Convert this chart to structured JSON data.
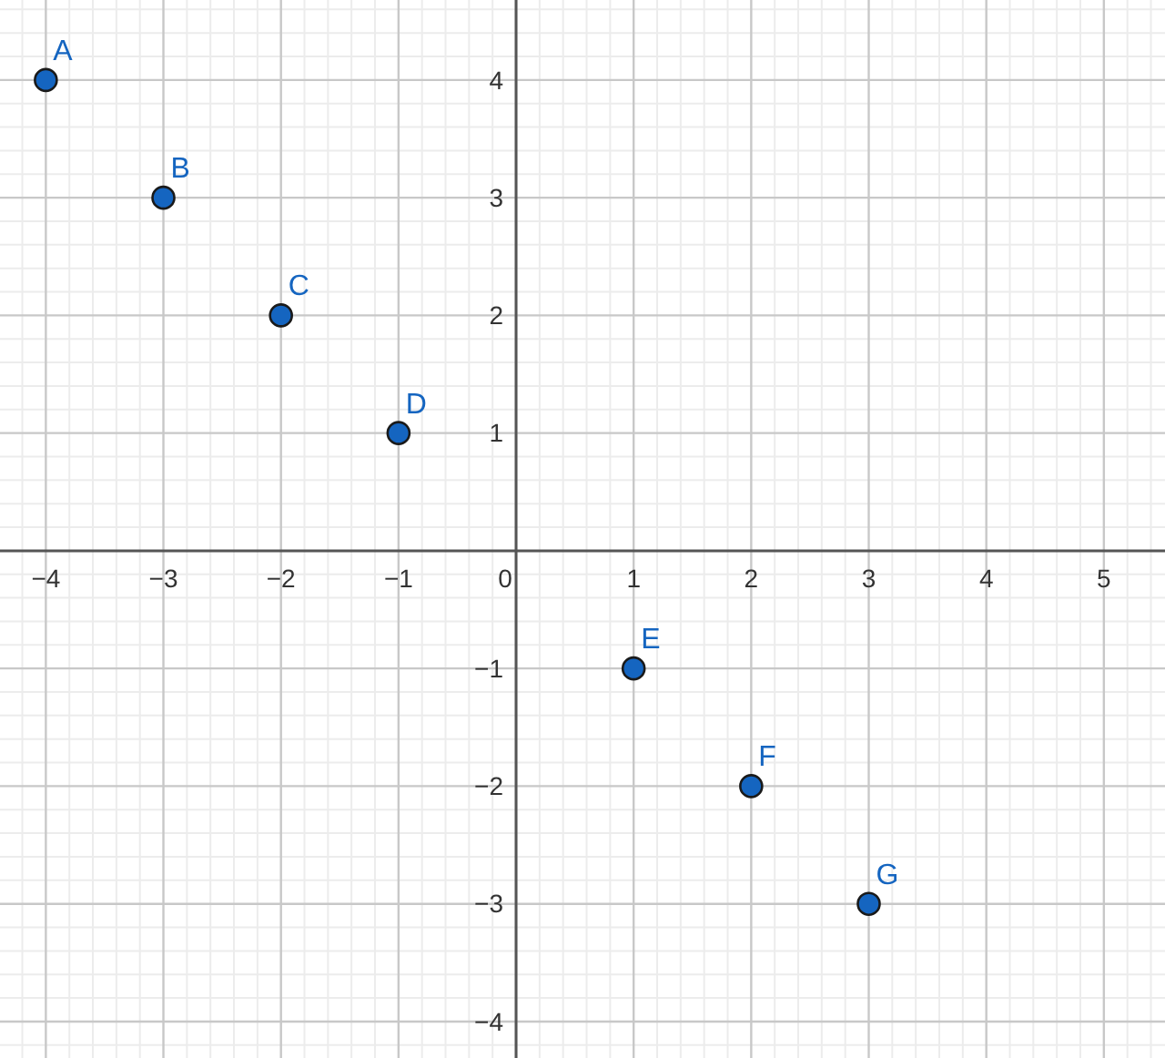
{
  "chart_data": {
    "type": "scatter",
    "marker": "circle",
    "grid": true,
    "x": [
      -4,
      -3,
      -2,
      -1,
      1,
      2,
      3
    ],
    "series": [
      {
        "color": "#1565c0",
        "values": [
          4,
          3,
          2,
          1,
          -1,
          -2,
          -3
        ]
      }
    ],
    "xlim": [
      -4.39,
      5.52
    ],
    "ylim": [
      -4.31,
      4.68
    ],
    "xticks": [
      {
        "value": -4.2,
        "label": null
      },
      {
        "value": -4,
        "label": "−4"
      },
      {
        "value": -3.8,
        "label": null
      },
      {
        "value": -3.6,
        "label": null
      },
      {
        "value": -3.4,
        "label": null
      },
      {
        "value": -3.2,
        "label": null
      },
      {
        "value": -3,
        "label": "−3"
      },
      {
        "value": -2.8,
        "label": null
      },
      {
        "value": -2.6,
        "label": null
      },
      {
        "value": -2.4,
        "label": null
      },
      {
        "value": -2.2,
        "label": null
      },
      {
        "value": -2,
        "label": "−2"
      },
      {
        "value": -1.8,
        "label": null
      },
      {
        "value": -1.6,
        "label": null
      },
      {
        "value": -1.4,
        "label": null
      },
      {
        "value": -1.2,
        "label": null
      },
      {
        "value": -1,
        "label": "−1"
      },
      {
        "value": -0.8,
        "label": null
      },
      {
        "value": -0.6,
        "label": null
      },
      {
        "value": -0.4,
        "label": null
      },
      {
        "value": -0.2,
        "label": null
      },
      0,
      {
        "value": 0.2,
        "label": null
      },
      {
        "value": 0.4,
        "label": null
      },
      {
        "value": 0.6,
        "label": null
      },
      {
        "value": 0.8,
        "label": null
      },
      1,
      {
        "value": 1.2,
        "label": null
      },
      {
        "value": 1.4,
        "label": null
      },
      {
        "value": 1.6,
        "label": null
      },
      {
        "value": 1.8,
        "label": null
      },
      2,
      {
        "value": 2.2,
        "label": null
      },
      {
        "value": 2.4,
        "label": null
      },
      {
        "value": 2.6,
        "label": null
      },
      {
        "value": 2.8,
        "label": null
      },
      3,
      {
        "value": 3.2,
        "label": null
      },
      {
        "value": 3.4,
        "label": null
      },
      {
        "value": 3.6,
        "label": null
      },
      {
        "value": 3.8,
        "label": null
      },
      4,
      {
        "value": 4.2,
        "label": null
      },
      {
        "value": 4.4,
        "label": null
      },
      {
        "value": 4.6,
        "label": null
      },
      {
        "value": 4.8,
        "label": null
      },
      5,
      {
        "value": 5.2,
        "label": null
      },
      {
        "value": 5.4,
        "label": null
      }
    ],
    "yticks": [
      {
        "value": -4.2,
        "label": null
      },
      {
        "value": -4,
        "label": "−4"
      },
      {
        "value": -3.8,
        "label": null
      },
      {
        "value": -3.6,
        "label": null
      },
      {
        "value": -3.4,
        "label": null
      },
      {
        "value": -3.2,
        "label": null
      },
      {
        "value": -3,
        "label": "−3"
      },
      {
        "value": -2.8,
        "label": null
      },
      {
        "value": -2.6,
        "label": null
      },
      {
        "value": -2.4,
        "label": null
      },
      {
        "value": -2.2,
        "label": null
      },
      {
        "value": -2,
        "label": "−2"
      },
      {
        "value": -1.8,
        "label": null
      },
      {
        "value": -1.6,
        "label": null
      },
      {
        "value": -1.4,
        "label": null
      },
      {
        "value": -1.2,
        "label": null
      },
      {
        "value": -1,
        "label": "−1"
      },
      {
        "value": -0.8,
        "label": null
      },
      {
        "value": -0.6,
        "label": null
      },
      {
        "value": -0.4,
        "label": null
      },
      {
        "value": -0.2,
        "label": null
      },
      {
        "value": 0.2,
        "label": null
      },
      {
        "value": 0.4,
        "label": null
      },
      {
        "value": 0.6,
        "label": null
      },
      {
        "value": 0.8,
        "label": null
      },
      1,
      {
        "value": 1.2,
        "label": null
      },
      {
        "value": 1.4,
        "label": null
      },
      {
        "value": 1.6,
        "label": null
      },
      {
        "value": 1.8,
        "label": null
      },
      2,
      {
        "value": 2.2,
        "label": null
      },
      {
        "value": 2.4,
        "label": null
      },
      {
        "value": 2.6,
        "label": null
      },
      {
        "value": 2.8,
        "label": null
      },
      3,
      {
        "value": 3.2,
        "label": null
      },
      {
        "value": 3.4,
        "label": null
      },
      {
        "value": 3.6,
        "label": null
      },
      {
        "value": 3.8,
        "label": null
      },
      4,
      {
        "value": 4.2,
        "label": null
      },
      {
        "value": 4.4,
        "label": null
      },
      {
        "value": 4.6,
        "label": null
      }
    ],
    "annotations": [
      {
        "text": "A",
        "x": -4,
        "y": 4
      },
      {
        "text": "B",
        "x": -3,
        "y": 3
      },
      {
        "text": "C",
        "x": -2,
        "y": 2
      },
      {
        "text": "D",
        "x": -1,
        "y": 1
      },
      {
        "text": "E",
        "x": 1,
        "y": -1
      },
      {
        "text": "F",
        "x": 2,
        "y": -2
      },
      {
        "text": "G",
        "x": 3,
        "y": -3
      }
    ]
  }
}
